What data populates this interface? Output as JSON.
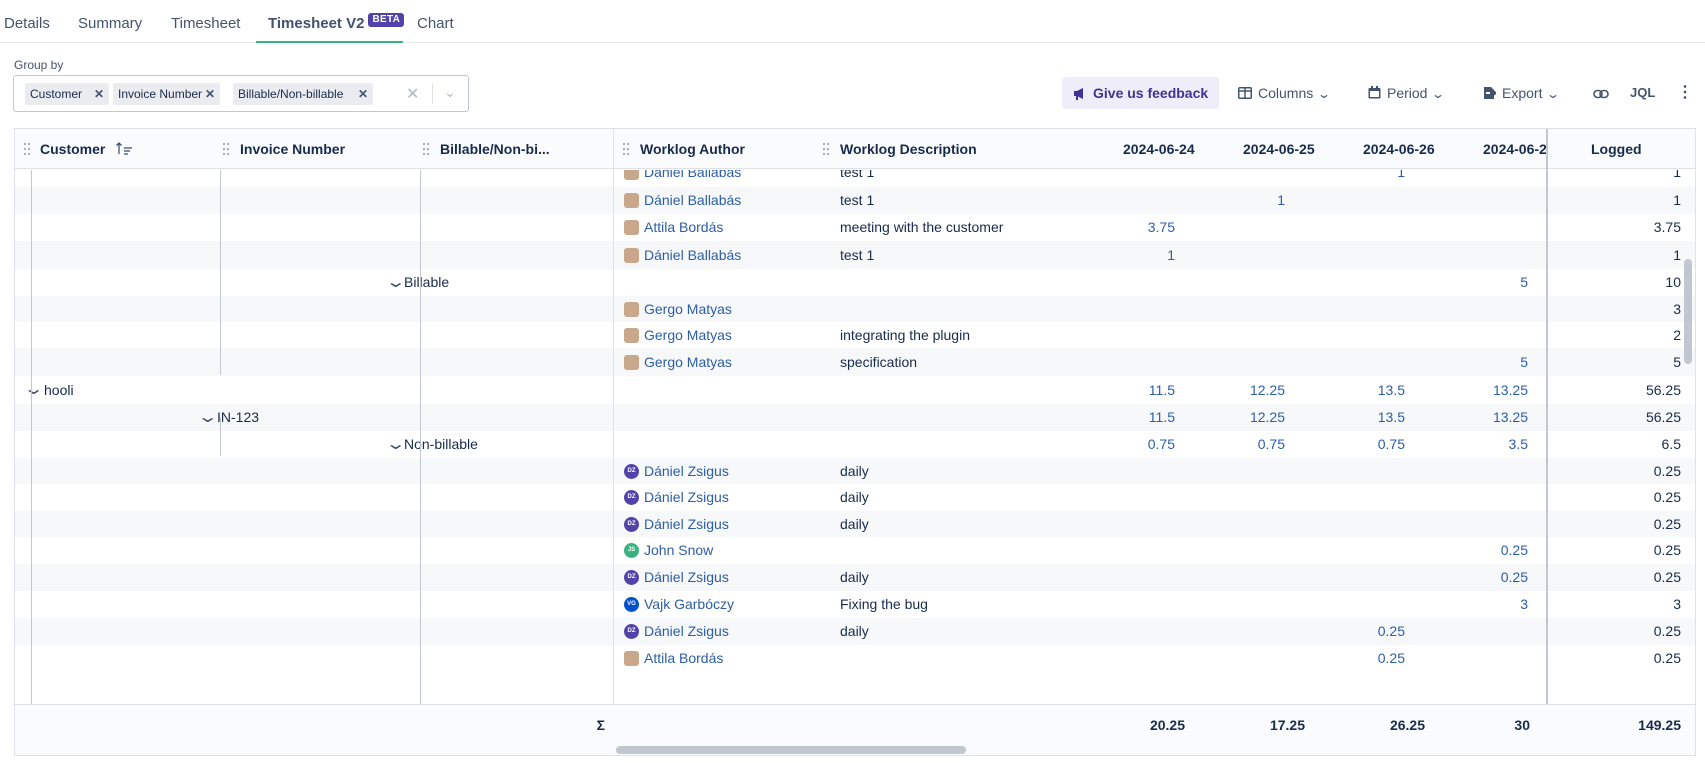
{
  "tabs": [
    {
      "label": "Details"
    },
    {
      "label": "Summary"
    },
    {
      "label": "Timesheet"
    },
    {
      "label": "Timesheet V2",
      "badge": "BETA"
    },
    {
      "label": "Chart"
    }
  ],
  "groupby": {
    "label": "Group by",
    "chips": [
      "Customer",
      "Invoice Number",
      "Billable/Non-billable"
    ]
  },
  "toolbar": {
    "feedback": "Give us feedback",
    "columns": "Columns",
    "period": "Period",
    "export": "Export",
    "jql": "JQL"
  },
  "table": {
    "headers": {
      "customer": "Customer",
      "invoice": "Invoice Number",
      "billable": "Billable/Non-bi...",
      "author": "Worklog Author",
      "description": "Worklog Description",
      "d1": "2024-06-24",
      "d2": "2024-06-25",
      "d3": "2024-06-26",
      "d4": "2024-06-2",
      "logged": "Logged"
    },
    "rows": [
      {
        "author": "Dániel Ballabás",
        "desc": "test 1",
        "d1": "",
        "d2": "",
        "d3": "1",
        "d4": "",
        "logged": "1"
      },
      {
        "author": "Dániel Ballabás",
        "desc": "test 1",
        "d1": "",
        "d2": "1",
        "d3": "",
        "d4": "",
        "logged": "1"
      },
      {
        "author": "Attila Bordás",
        "desc": "meeting with the customer",
        "d1": "3.75",
        "d2": "",
        "d3": "",
        "d4": "",
        "logged": "3.75"
      },
      {
        "author": "Dániel Ballabás",
        "desc": "test 1",
        "d1": "1",
        "d2": "",
        "d3": "",
        "d4": "",
        "logged": "1"
      },
      {
        "group3": "Billable",
        "d1": "",
        "d2": "",
        "d3": "",
        "d4": "5",
        "logged": "10"
      },
      {
        "author": "Gergo Matyas",
        "desc": "",
        "d1": "",
        "d2": "",
        "d3": "",
        "d4": "",
        "logged": "3"
      },
      {
        "author": "Gergo Matyas",
        "desc": "integrating the plugin",
        "d1": "",
        "d2": "",
        "d3": "",
        "d4": "",
        "logged": "2"
      },
      {
        "author": "Gergo Matyas",
        "desc": "specification",
        "d1": "",
        "d2": "",
        "d3": "",
        "d4": "5",
        "logged": "5"
      },
      {
        "group1": "hooli",
        "d1": "11.5",
        "d2": "12.25",
        "d3": "13.5",
        "d4": "13.25",
        "logged": "56.25"
      },
      {
        "group2": "IN-123",
        "d1": "11.5",
        "d2": "12.25",
        "d3": "13.5",
        "d4": "13.25",
        "logged": "56.25"
      },
      {
        "group3": "Non-billable",
        "d1": "0.75",
        "d2": "0.75",
        "d3": "0.75",
        "d4": "3.5",
        "logged": "6.5"
      },
      {
        "author": "Dániel Zsigus",
        "initials": "DZ",
        "desc": "daily",
        "d1": "",
        "d2": "",
        "d3": "",
        "d4": "",
        "logged": "0.25"
      },
      {
        "author": "Dániel Zsigus",
        "initials": "DZ",
        "desc": "daily",
        "d1": "",
        "d2": "",
        "d3": "",
        "d4": "",
        "logged": "0.25"
      },
      {
        "author": "Dániel Zsigus",
        "initials": "DZ",
        "desc": "daily",
        "d1": "",
        "d2": "",
        "d3": "",
        "d4": "",
        "logged": "0.25"
      },
      {
        "author": "John Snow",
        "initials": "JS",
        "desc": "",
        "d1": "",
        "d2": "",
        "d3": "",
        "d4": "0.25",
        "logged": "0.25"
      },
      {
        "author": "Dániel Zsigus",
        "initials": "DZ",
        "desc": "daily",
        "d1": "",
        "d2": "",
        "d3": "",
        "d4": "0.25",
        "logged": "0.25"
      },
      {
        "author": "Vajk Garbóczy",
        "initials": "VG",
        "desc": "Fixing the bug",
        "d1": "",
        "d2": "",
        "d3": "",
        "d4": "3",
        "logged": "3"
      },
      {
        "author": "Dániel Zsigus",
        "initials": "DZ",
        "desc": "daily",
        "d1": "",
        "d2": "",
        "d3": "0.25",
        "d4": "",
        "logged": "0.25"
      },
      {
        "author": "Attila Bordás",
        "desc": "",
        "d1": "",
        "d2": "",
        "d3": "0.25",
        "d4": "",
        "logged": "0.25"
      }
    ],
    "footer": {
      "sigma": "Σ",
      "d1": "20.25",
      "d2": "17.25",
      "d3": "26.25",
      "d4": "30",
      "logged": "149.25"
    }
  },
  "colors": {
    "accent": "#5243aa",
    "link": "#2c5ea8",
    "tab_underline": "#36b37e",
    "avatar_dz": "#5243aa",
    "avatar_js": "#36b37e",
    "avatar_vg": "#0052cc"
  }
}
